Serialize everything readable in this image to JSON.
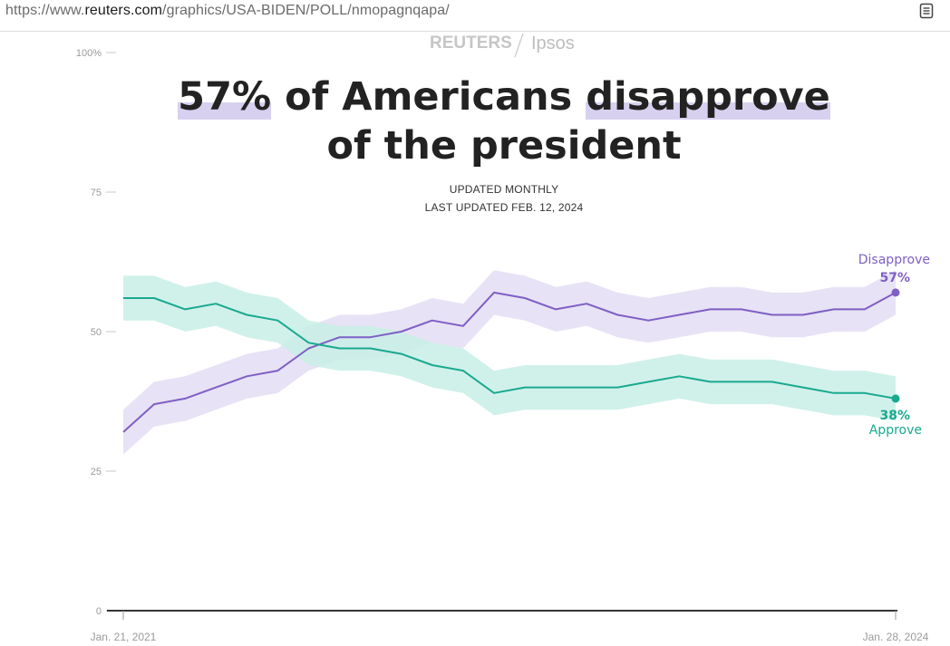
{
  "browser": {
    "url_prefix": "https://www.",
    "url_domain": "reuters.com",
    "url_path": "/graphics/USA-BIDEN/POLL/nmopagnqapa/"
  },
  "header": {
    "brand_left": "REUTERS",
    "separator": "/",
    "brand_right": "Ipsos"
  },
  "chart_data": {
    "type": "area",
    "title_parts": [
      "57%",
      " of Americans ",
      "disapprove",
      "of the president"
    ],
    "subtitle_1": "UPDATED MONTHLY",
    "subtitle_2": "LAST UPDATED FEB. 12, 2024",
    "y_ticks": [
      "100%",
      "75",
      "50",
      "25",
      "0"
    ],
    "ylim": [
      0,
      100
    ],
    "x_ticks": [
      "Jan. 21, 2021",
      "Jan. 28, 2024"
    ],
    "colors": {
      "disapprove": "#7e5fc4",
      "approve": "#1aa98f",
      "disapprove_band": "#e3ddf3",
      "approve_band": "#c8efe6"
    },
    "x": [
      0,
      0.04,
      0.08,
      0.12,
      0.16,
      0.2,
      0.24,
      0.28,
      0.32,
      0.36,
      0.4,
      0.44,
      0.48,
      0.52,
      0.56,
      0.6,
      0.64,
      0.68,
      0.72,
      0.76,
      0.8,
      0.84,
      0.88,
      0.92,
      0.96,
      1
    ],
    "series": [
      {
        "name": "Disapprove",
        "end_label": "57%",
        "values": [
          32,
          37,
          38,
          40,
          42,
          43,
          47,
          49,
          49,
          50,
          52,
          51,
          57,
          56,
          54,
          55,
          53,
          52,
          53,
          54,
          54,
          53,
          53,
          54,
          54,
          57
        ]
      },
      {
        "name": "Approve",
        "end_label": "38%",
        "values": [
          56,
          56,
          54,
          55,
          53,
          52,
          48,
          47,
          47,
          46,
          44,
          43,
          39,
          40,
          40,
          40,
          40,
          41,
          42,
          41,
          41,
          41,
          40,
          39,
          39,
          38
        ]
      }
    ]
  }
}
